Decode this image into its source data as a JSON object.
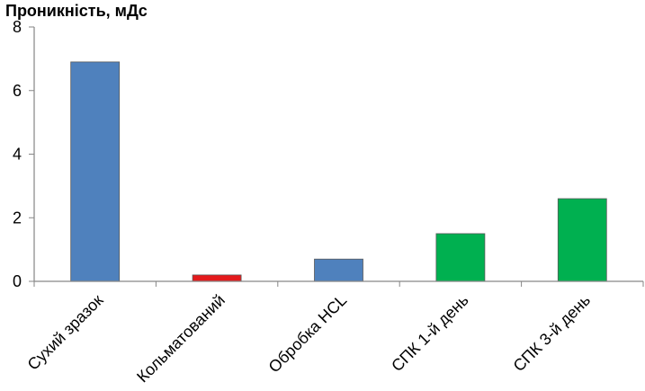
{
  "chart_data": {
    "type": "bar",
    "title": "",
    "xlabel": "",
    "ylabel": "Проникність, мДс",
    "ylim": [
      0,
      8
    ],
    "yticks": [
      "0",
      "2",
      "4",
      "6",
      "8"
    ],
    "grid": false,
    "categories": [
      "Сухий зразок",
      "Кольматований",
      "Обробка HCL",
      "СПК 1-й день",
      "СПК 3-й день"
    ],
    "values": [
      6.9,
      0.2,
      0.7,
      1.5,
      2.6
    ],
    "colors": [
      "#4f81bd",
      "#e41a1c",
      "#4f81bd",
      "#00b050",
      "#00b050"
    ]
  }
}
